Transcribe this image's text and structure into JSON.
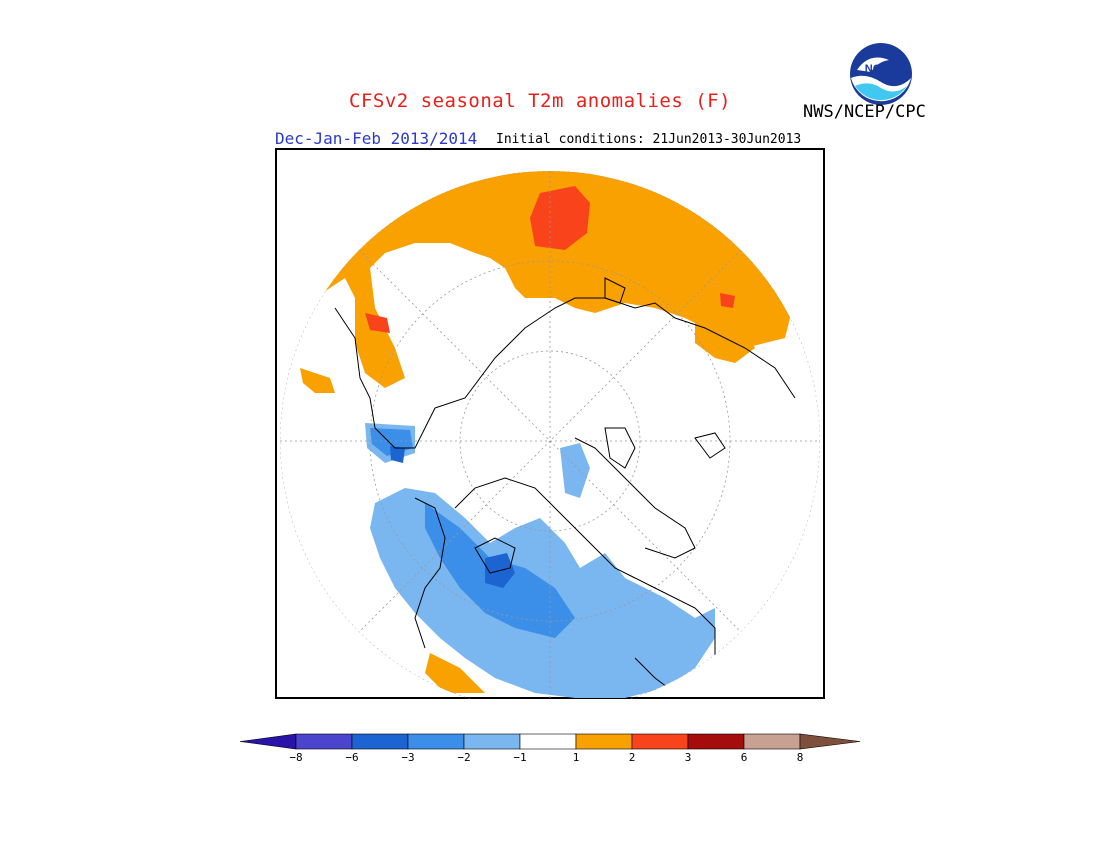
{
  "title": "CFSv2 seasonal T2m anomalies (F)",
  "agency": "NWS/NCEP/CPC",
  "logo_text": "NOAA",
  "period": "Dec-Jan-Feb 2013/2014",
  "initial_conditions": "Initial conditions: 21Jun2013-30Jun2013",
  "colorbar": {
    "labels": [
      "−8",
      "−6",
      "−3",
      "−2",
      "−1",
      "1",
      "2",
      "3",
      "6",
      "8"
    ],
    "colors": [
      "#2a13a8",
      "#4b44cc",
      "#1c64d2",
      "#3c8fe8",
      "#7ab6f0",
      "#ffffff",
      "#f9a100",
      "#f9431b",
      "#a50d0d",
      "#c9a193",
      "#7f4f3d"
    ]
  },
  "colors": {
    "warm_1_2": "#f9a100",
    "warm_2_3": "#f9431b",
    "cool_1_2": "#7ab6f0",
    "cool_2_3": "#3c8fe8",
    "cool_3_6": "#1c64d2",
    "title": "#e8201c",
    "period": "#2a39d0"
  }
}
